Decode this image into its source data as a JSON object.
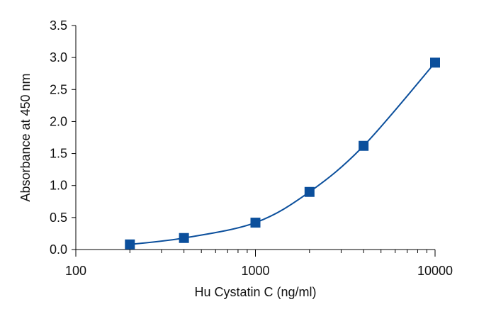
{
  "chart_data": {
    "type": "scatter",
    "title": "",
    "xlabel": "Hu Cystatin C (ng/ml)",
    "ylabel": "Absorbance at 450 nm",
    "xscale": "log",
    "xlim": [
      100,
      10000
    ],
    "ylim": [
      0,
      3.5
    ],
    "grid": false,
    "legend": "none",
    "x_ticks": [
      "100",
      "1000",
      "10000"
    ],
    "y_ticks": [
      "0.0",
      "0.5",
      "1.0",
      "1.5",
      "2.0",
      "2.5",
      "3.0",
      "3.5"
    ],
    "series": [
      {
        "marker": "square",
        "color": "#0b4f9c",
        "x": [
          200,
          400,
          1000,
          2000,
          4000,
          10000
        ],
        "y": [
          0.08,
          0.18,
          0.42,
          0.9,
          1.62,
          2.92
        ]
      }
    ],
    "fit_curve": true
  }
}
